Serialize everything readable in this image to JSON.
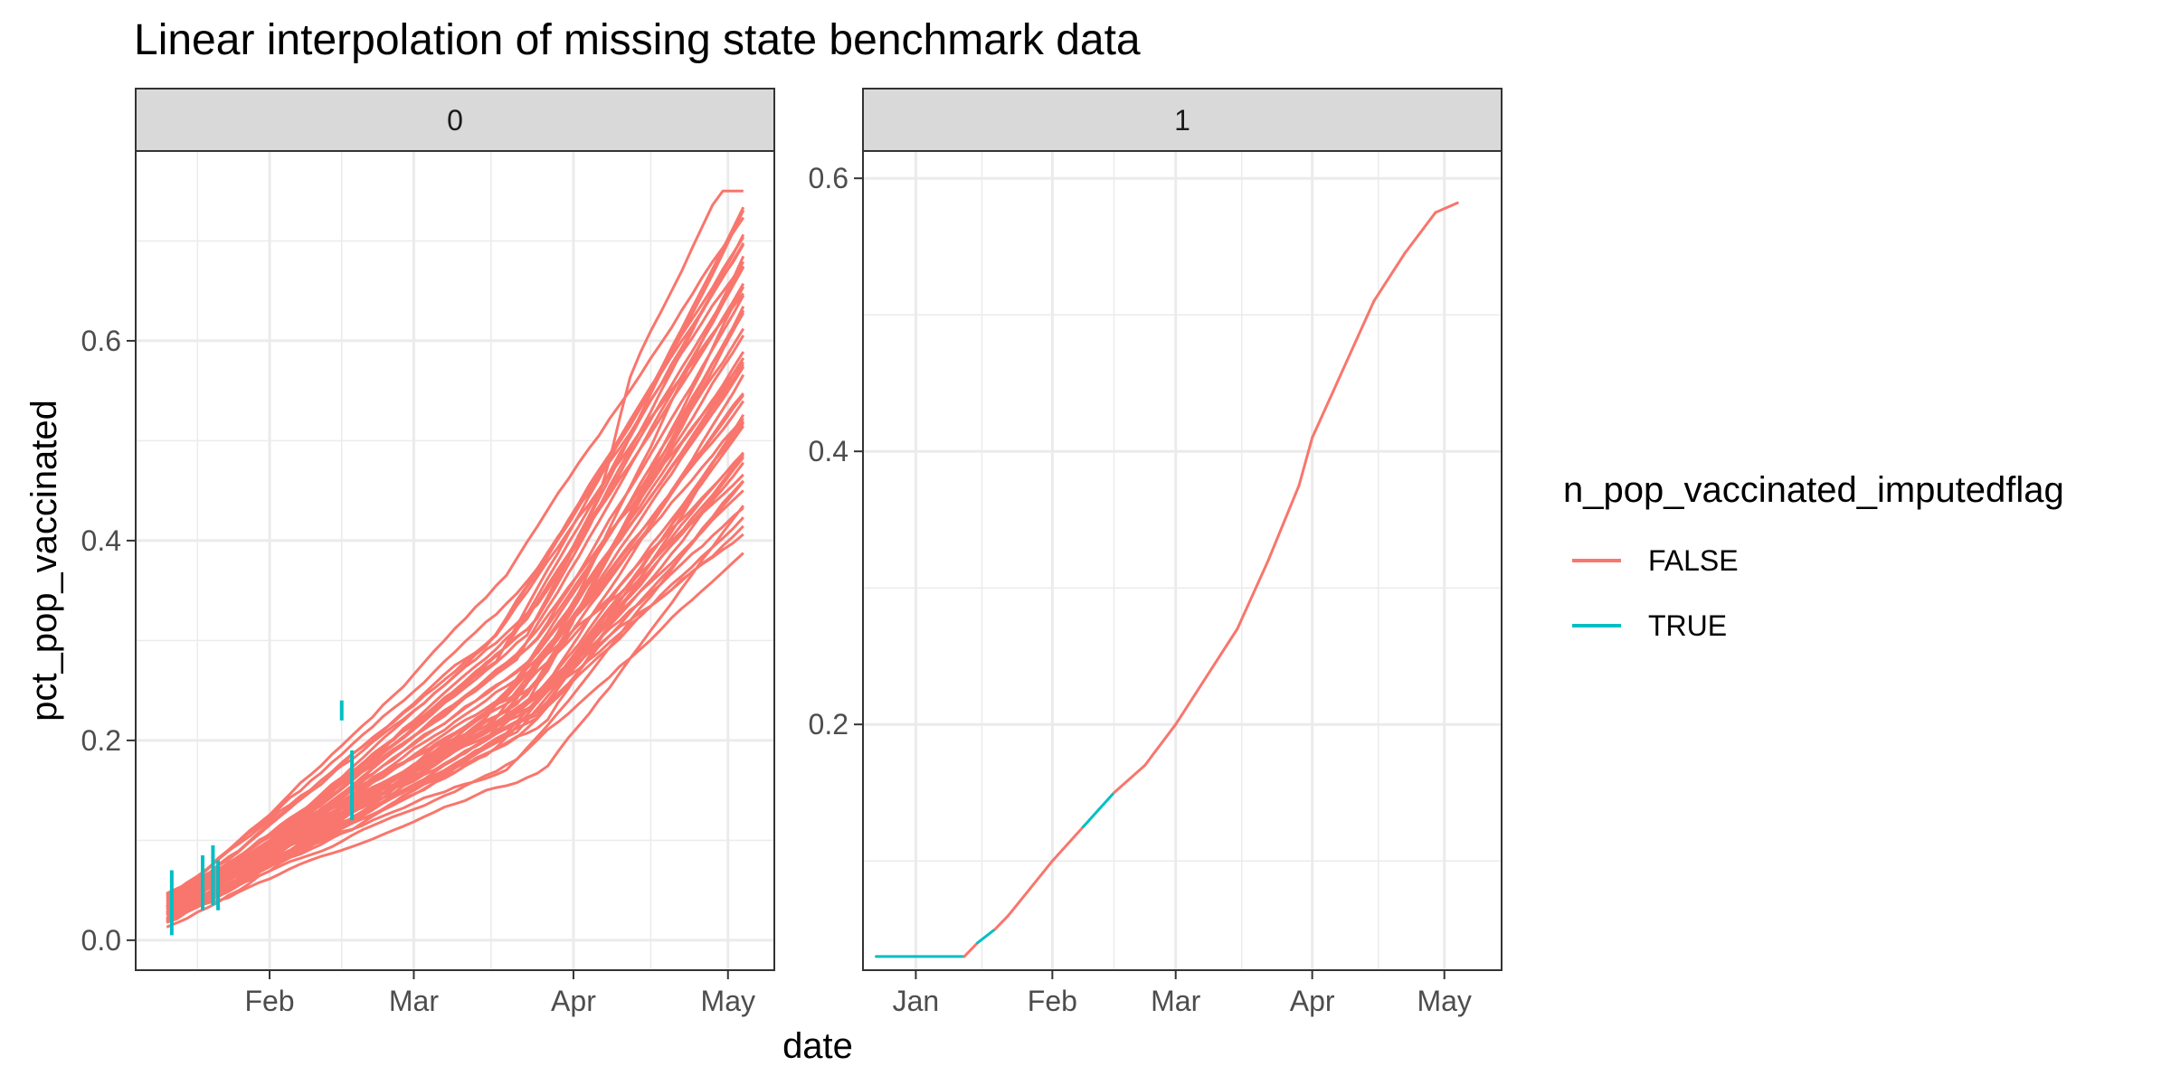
{
  "chart_data": {
    "type": "line",
    "title": "Linear interpolation of missing state benchmark data",
    "xlabel": "date",
    "ylabel": "pct_pop_vaccinated",
    "legend": {
      "title": "n_pop_vaccinated_imputedflag",
      "placement": "right",
      "entries": [
        {
          "label": "FALSE",
          "color": "#F8766D"
        },
        {
          "label": "TRUE",
          "color": "#00BFC4"
        }
      ]
    },
    "colors": {
      "FALSE": "#F8766D",
      "TRUE": "#00BFC4"
    },
    "grid": true,
    "panels": [
      {
        "strip": "0",
        "xlim": [
          "2021-01-06",
          "2021-05-10"
        ],
        "ylim": [
          -0.03,
          0.79
        ],
        "x_ticks": [
          {
            "date": "2021-02-01",
            "label": "Feb"
          },
          {
            "date": "2021-03-01",
            "label": "Mar"
          },
          {
            "date": "2021-04-01",
            "label": "Apr"
          },
          {
            "date": "2021-05-01",
            "label": "May"
          }
        ],
        "y_ticks": [
          {
            "value": 0.0,
            "label": "0.0"
          },
          {
            "value": 0.2,
            "label": "0.2"
          },
          {
            "value": 0.4,
            "label": "0.4"
          },
          {
            "value": 0.6,
            "label": "0.6"
          }
        ],
        "series_count": 50,
        "date_range": [
          "2021-01-12",
          "2021-05-05"
        ],
        "end_values_range": [
          0.41,
          0.75
        ],
        "imputed_segments": [
          {
            "date": "2021-01-13",
            "from": 0.005,
            "to": 0.07,
            "flag": "TRUE"
          },
          {
            "date": "2021-01-19",
            "from": 0.03,
            "to": 0.085,
            "flag": "TRUE"
          },
          {
            "date": "2021-01-21",
            "from": 0.035,
            "to": 0.095,
            "flag": "TRUE"
          },
          {
            "date": "2021-01-22",
            "from": 0.03,
            "to": 0.08,
            "flag": "TRUE"
          },
          {
            "date": "2021-02-17",
            "from": 0.12,
            "to": 0.19,
            "flag": "TRUE"
          },
          {
            "date": "2021-02-15",
            "from": 0.22,
            "to": 0.24,
            "flag": "TRUE"
          }
        ]
      },
      {
        "strip": "1",
        "xlim": [
          "2020-12-20",
          "2021-05-14"
        ],
        "ylim": [
          0.02,
          0.62
        ],
        "x_ticks": [
          {
            "date": "2021-01-01",
            "label": "Jan"
          },
          {
            "date": "2021-02-01",
            "label": "Feb"
          },
          {
            "date": "2021-03-01",
            "label": "Mar"
          },
          {
            "date": "2021-04-01",
            "label": "Apr"
          },
          {
            "date": "2021-05-01",
            "label": "May"
          }
        ],
        "y_ticks": [
          {
            "value": 0.2,
            "label": "0.2"
          },
          {
            "value": 0.4,
            "label": "0.4"
          },
          {
            "value": 0.6,
            "label": "0.6"
          }
        ],
        "series": [
          {
            "points": [
              [
                "2020-12-23",
                0.03,
                "TRUE"
              ],
              [
                "2021-01-12",
                0.03,
                "TRUE"
              ],
              [
                "2021-01-15",
                0.04,
                "FALSE"
              ],
              [
                "2021-01-19",
                0.05,
                "TRUE"
              ],
              [
                "2021-01-22",
                0.06,
                "FALSE"
              ],
              [
                "2021-01-27",
                0.08,
                "FALSE"
              ],
              [
                "2021-02-01",
                0.1,
                "FALSE"
              ],
              [
                "2021-02-08",
                0.125,
                "FALSE"
              ],
              [
                "2021-02-15",
                0.15,
                "TRUE"
              ],
              [
                "2021-02-22",
                0.17,
                "FALSE"
              ],
              [
                "2021-03-01",
                0.2,
                "FALSE"
              ],
              [
                "2021-03-08",
                0.235,
                "FALSE"
              ],
              [
                "2021-03-15",
                0.27,
                "FALSE"
              ],
              [
                "2021-03-22",
                0.32,
                "FALSE"
              ],
              [
                "2021-03-29",
                0.375,
                "FALSE"
              ],
              [
                "2021-04-01",
                0.41,
                "FALSE"
              ],
              [
                "2021-04-08",
                0.46,
                "FALSE"
              ],
              [
                "2021-04-15",
                0.51,
                "FALSE"
              ],
              [
                "2021-04-22",
                0.545,
                "FALSE"
              ],
              [
                "2021-04-29",
                0.575,
                "FALSE"
              ],
              [
                "2021-05-04",
                0.582,
                "FALSE"
              ]
            ]
          }
        ]
      }
    ]
  }
}
